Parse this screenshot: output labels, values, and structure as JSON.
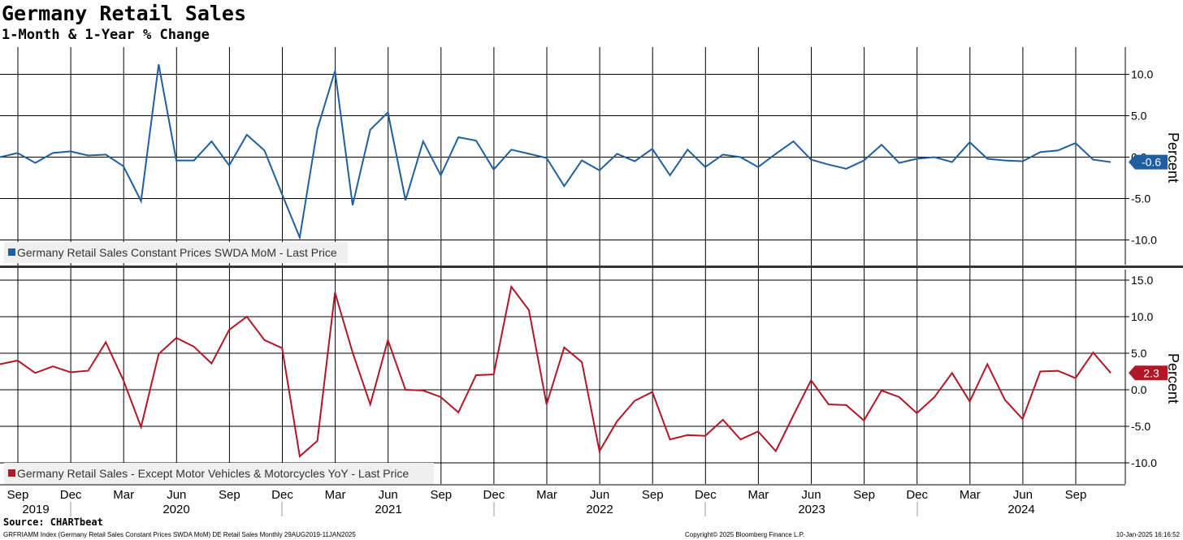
{
  "header": {
    "title": "Germany Retail Sales",
    "subtitle": "1-Month & 1-Year % Change"
  },
  "footer": {
    "source": "Source: CHARTbeat",
    "index_info": "GRFRIAMM Index (Germany Retail Sales Constant Prices SWDA MoM) DE Retail Sales  Monthly 29AUG2019-11JAN2025",
    "copyright": "Copyright© 2025 Bloomberg Finance L.P.",
    "timestamp": "10-Jan-2025 16:16:52"
  },
  "x_axis": {
    "month_ticks": [
      "Sep",
      "Dec",
      "Mar",
      "Jun",
      "Sep",
      "Dec",
      "Mar",
      "Jun",
      "Sep",
      "Dec",
      "Mar",
      "Jun",
      "Sep",
      "Dec",
      "Mar",
      "Jun",
      "Sep",
      "Dec",
      "Mar",
      "Jun",
      "Sep"
    ],
    "year_labels": [
      "2019",
      "2020",
      "2021",
      "2022",
      "2023",
      "2024"
    ]
  },
  "chart_data": [
    {
      "type": "line",
      "ylabel": "Percent",
      "ylim": [
        -12.5,
        12.5
      ],
      "yticks": [
        -10.0,
        -5.0,
        0.0,
        5.0,
        10.0
      ],
      "tick_labels": [
        "-10.0",
        "-5.0",
        "0.0",
        "5.0",
        "10.0"
      ],
      "grid": true,
      "legend": "bottom-left",
      "last_value_label": "-0.6",
      "color": "#1f5fa0",
      "x": [
        "2019-08",
        "2019-09",
        "2019-10",
        "2019-11",
        "2019-12",
        "2020-01",
        "2020-02",
        "2020-03",
        "2020-04",
        "2020-05",
        "2020-06",
        "2020-07",
        "2020-08",
        "2020-09",
        "2020-10",
        "2020-11",
        "2020-12",
        "2021-01",
        "2021-02",
        "2021-03",
        "2021-04",
        "2021-05",
        "2021-06",
        "2021-07",
        "2021-08",
        "2021-09",
        "2021-10",
        "2021-11",
        "2021-12",
        "2022-01",
        "2022-02",
        "2022-03",
        "2022-04",
        "2022-05",
        "2022-06",
        "2022-07",
        "2022-08",
        "2022-09",
        "2022-10",
        "2022-11",
        "2022-12",
        "2023-01",
        "2023-02",
        "2023-03",
        "2023-04",
        "2023-05",
        "2023-06",
        "2023-07",
        "2023-08",
        "2023-09",
        "2023-10",
        "2023-11",
        "2023-12",
        "2024-01",
        "2024-02",
        "2024-03",
        "2024-04",
        "2024-05",
        "2024-06",
        "2024-07",
        "2024-08",
        "2024-09",
        "2024-10",
        "2024-11"
      ],
      "series": [
        {
          "name": "Germany Retail Sales Constant Prices SWDA MoM - Last Price",
          "values": [
            0.0,
            0.5,
            -0.7,
            0.5,
            0.7,
            0.2,
            0.3,
            -1.1,
            -5.3,
            11.2,
            -0.4,
            -0.4,
            1.9,
            -1.0,
            2.7,
            0.8,
            -4.5,
            -9.7,
            3.4,
            10.4,
            -5.8,
            3.3,
            5.4,
            -5.2,
            1.9,
            -2.2,
            2.4,
            2.0,
            -1.5,
            0.9,
            0.4,
            -0.1,
            -3.5,
            -0.4,
            -1.6,
            0.4,
            -0.5,
            1.0,
            -2.2,
            0.9,
            -1.2,
            0.3,
            0.0,
            -1.2,
            0.4,
            1.9,
            -0.3,
            -0.9,
            -1.4,
            -0.4,
            1.5,
            -0.7,
            -0.2,
            0.0,
            -0.6,
            1.8,
            -0.2,
            -0.4,
            -0.5,
            0.6,
            0.8,
            1.7,
            -0.3,
            -0.6
          ]
        }
      ]
    },
    {
      "type": "line",
      "ylabel": "Percent",
      "ylim": [
        -13,
        16
      ],
      "yticks": [
        -10.0,
        -5.0,
        0.0,
        5.0,
        10.0,
        15.0
      ],
      "tick_labels": [
        "-10.0",
        "-5.0",
        "0.0",
        "5.0",
        "10.0",
        "15.0"
      ],
      "grid": true,
      "legend": "bottom-left",
      "last_value_label": "2.3",
      "color": "#b01727",
      "x": [
        "2019-08",
        "2019-09",
        "2019-10",
        "2019-11",
        "2019-12",
        "2020-01",
        "2020-02",
        "2020-03",
        "2020-04",
        "2020-05",
        "2020-06",
        "2020-07",
        "2020-08",
        "2020-09",
        "2020-10",
        "2020-11",
        "2020-12",
        "2021-01",
        "2021-02",
        "2021-03",
        "2021-04",
        "2021-05",
        "2021-06",
        "2021-07",
        "2021-08",
        "2021-09",
        "2021-10",
        "2021-11",
        "2021-12",
        "2022-01",
        "2022-02",
        "2022-03",
        "2022-04",
        "2022-05",
        "2022-06",
        "2022-07",
        "2022-08",
        "2022-09",
        "2022-10",
        "2022-11",
        "2022-12",
        "2023-01",
        "2023-02",
        "2023-03",
        "2023-04",
        "2023-05",
        "2023-06",
        "2023-07",
        "2023-08",
        "2023-09",
        "2023-10",
        "2023-11",
        "2023-12",
        "2024-01",
        "2024-02",
        "2024-03",
        "2024-04",
        "2024-05",
        "2024-06",
        "2024-07",
        "2024-08",
        "2024-09",
        "2024-10",
        "2024-11"
      ],
      "series": [
        {
          "name": "Germany Retail Sales - Except Motor Vehicles & Motorcycles YoY - Last Price",
          "values": [
            3.5,
            4.0,
            2.3,
            3.2,
            2.4,
            2.6,
            6.5,
            1.3,
            -5.1,
            4.9,
            7.1,
            5.9,
            3.6,
            8.2,
            10.0,
            6.8,
            5.7,
            -9.1,
            -7.0,
            13.3,
            5.1,
            -2.0,
            6.8,
            0.0,
            -0.1,
            -1.0,
            -3.1,
            2.0,
            2.1,
            14.1,
            10.9,
            -2.0,
            5.8,
            3.8,
            -8.4,
            -4.3,
            -1.5,
            -0.3,
            -6.8,
            -6.2,
            -6.3,
            -4.1,
            -6.8,
            -5.7,
            -8.4,
            -3.5,
            1.3,
            -2.0,
            -2.1,
            -4.2,
            -0.1,
            -1.0,
            -3.2,
            -1.0,
            2.3,
            -1.6,
            3.5,
            -1.4,
            -4.0,
            2.5,
            2.6,
            1.6,
            5.1,
            2.3
          ]
        }
      ]
    }
  ]
}
